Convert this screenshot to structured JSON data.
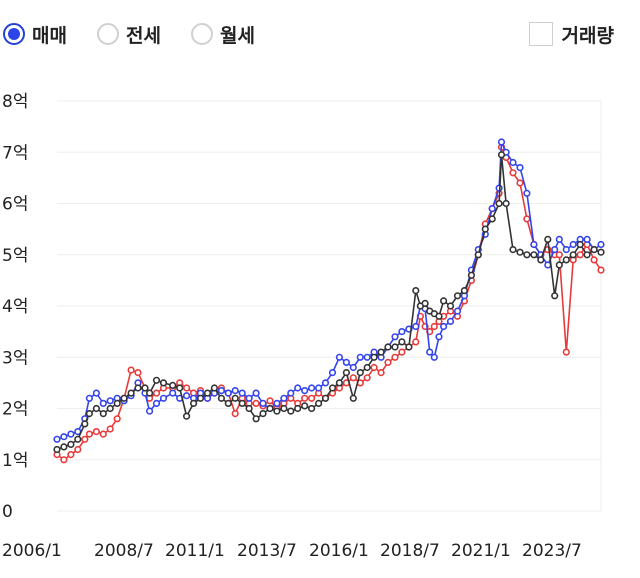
{
  "controls": {
    "radios": [
      {
        "label": "매매",
        "selected": true
      },
      {
        "label": "전세",
        "selected": false
      },
      {
        "label": "월세",
        "selected": false
      }
    ],
    "checkbox": {
      "label": "거래량",
      "checked": false
    }
  },
  "colors": {
    "sale": "#3344ee",
    "jeonse": "#e83a3a",
    "wolse": "#333333",
    "grid": "#eeeeee"
  },
  "chart_data": {
    "type": "line",
    "title": "",
    "xlabel": "",
    "ylabel": "",
    "ylim": [
      0,
      8
    ],
    "xlim": [
      "2006-01",
      "2025-08"
    ],
    "y_ticks": [
      "0",
      "1억",
      "2억",
      "3억",
      "4억",
      "5억",
      "6억",
      "7억",
      "8억"
    ],
    "x_ticks": [
      "2006/1",
      "2008/7",
      "2011/1",
      "2013/7",
      "2016/1",
      "2018/7",
      "2021/1",
      "2023/7"
    ],
    "grid": true,
    "legend": "none",
    "series": [
      {
        "color": "#3344ee",
        "points": [
          [
            "2006-01",
            1.4
          ],
          [
            "2006-04",
            1.45
          ],
          [
            "2006-07",
            1.5
          ],
          [
            "2006-10",
            1.55
          ],
          [
            "2007-01",
            1.8
          ],
          [
            "2007-03",
            2.2
          ],
          [
            "2007-06",
            2.3
          ],
          [
            "2007-09",
            2.1
          ],
          [
            "2007-12",
            2.15
          ],
          [
            "2008-03",
            2.2
          ],
          [
            "2008-06",
            2.15
          ],
          [
            "2008-09",
            2.25
          ],
          [
            "2008-12",
            2.5
          ],
          [
            "2009-03",
            2.3
          ],
          [
            "2009-05",
            1.95
          ],
          [
            "2009-08",
            2.1
          ],
          [
            "2009-11",
            2.2
          ],
          [
            "2010-03",
            2.3
          ],
          [
            "2010-06",
            2.2
          ],
          [
            "2010-09",
            2.25
          ],
          [
            "2010-12",
            2.2
          ],
          [
            "2011-03",
            2.3
          ],
          [
            "2011-06",
            2.2
          ],
          [
            "2011-09",
            2.3
          ],
          [
            "2011-12",
            2.35
          ],
          [
            "2012-03",
            2.3
          ],
          [
            "2012-06",
            2.35
          ],
          [
            "2012-09",
            2.3
          ],
          [
            "2012-12",
            2.2
          ],
          [
            "2013-03",
            2.3
          ],
          [
            "2013-06",
            2.1
          ],
          [
            "2013-09",
            2.0
          ],
          [
            "2013-12",
            2.1
          ],
          [
            "2014-03",
            2.2
          ],
          [
            "2014-06",
            2.3
          ],
          [
            "2014-09",
            2.4
          ],
          [
            "2014-12",
            2.35
          ],
          [
            "2015-03",
            2.4
          ],
          [
            "2015-06",
            2.4
          ],
          [
            "2015-09",
            2.5
          ],
          [
            "2015-12",
            2.7
          ],
          [
            "2016-03",
            3.0
          ],
          [
            "2016-06",
            2.9
          ],
          [
            "2016-09",
            2.8
          ],
          [
            "2016-12",
            3.0
          ],
          [
            "2017-03",
            3.0
          ],
          [
            "2017-06",
            3.1
          ],
          [
            "2017-09",
            3.0
          ],
          [
            "2017-12",
            3.2
          ],
          [
            "2018-03",
            3.4
          ],
          [
            "2018-06",
            3.5
          ],
          [
            "2018-09",
            3.55
          ],
          [
            "2018-12",
            3.6
          ],
          [
            "2019-02",
            4.0
          ],
          [
            "2019-04",
            3.95
          ],
          [
            "2019-06",
            3.1
          ],
          [
            "2019-08",
            3.0
          ],
          [
            "2019-10",
            3.4
          ],
          [
            "2019-12",
            3.6
          ],
          [
            "2020-03",
            3.7
          ],
          [
            "2020-06",
            3.9
          ],
          [
            "2020-09",
            4.2
          ],
          [
            "2020-12",
            4.7
          ],
          [
            "2021-03",
            5.1
          ],
          [
            "2021-06",
            5.4
          ],
          [
            "2021-09",
            5.9
          ],
          [
            "2021-12",
            6.3
          ],
          [
            "2022-01",
            7.2
          ],
          [
            "2022-03",
            7.0
          ],
          [
            "2022-06",
            6.8
          ],
          [
            "2022-09",
            6.7
          ],
          [
            "2022-12",
            6.2
          ],
          [
            "2023-03",
            5.2
          ],
          [
            "2023-06",
            5.0
          ],
          [
            "2023-09",
            4.8
          ],
          [
            "2023-12",
            5.1
          ],
          [
            "2024-02",
            5.3
          ],
          [
            "2024-05",
            5.1
          ],
          [
            "2024-08",
            5.2
          ],
          [
            "2024-11",
            5.3
          ],
          [
            "2025-02",
            5.3
          ],
          [
            "2025-05",
            5.1
          ],
          [
            "2025-08",
            5.2
          ]
        ]
      },
      {
        "color": "#e83a3a",
        "points": [
          [
            "2006-01",
            1.1
          ],
          [
            "2006-04",
            1.0
          ],
          [
            "2006-07",
            1.1
          ],
          [
            "2006-10",
            1.2
          ],
          [
            "2007-01",
            1.4
          ],
          [
            "2007-03",
            1.5
          ],
          [
            "2007-06",
            1.55
          ],
          [
            "2007-09",
            1.5
          ],
          [
            "2007-12",
            1.6
          ],
          [
            "2008-03",
            1.8
          ],
          [
            "2008-06",
            2.2
          ],
          [
            "2008-09",
            2.75
          ],
          [
            "2008-12",
            2.7
          ],
          [
            "2009-03",
            2.4
          ],
          [
            "2009-05",
            2.2
          ],
          [
            "2009-08",
            2.3
          ],
          [
            "2009-11",
            2.4
          ],
          [
            "2010-03",
            2.4
          ],
          [
            "2010-06",
            2.5
          ],
          [
            "2010-09",
            2.4
          ],
          [
            "2010-12",
            2.3
          ],
          [
            "2011-03",
            2.35
          ],
          [
            "2011-06",
            2.2
          ],
          [
            "2011-09",
            2.3
          ],
          [
            "2011-12",
            2.4
          ],
          [
            "2012-03",
            2.3
          ],
          [
            "2012-06",
            1.9
          ],
          [
            "2012-09",
            2.2
          ],
          [
            "2012-12",
            2.1
          ],
          [
            "2013-03",
            2.1
          ],
          [
            "2013-06",
            2.05
          ],
          [
            "2013-09",
            2.15
          ],
          [
            "2013-12",
            2.0
          ],
          [
            "2014-03",
            2.1
          ],
          [
            "2014-06",
            2.2
          ],
          [
            "2014-09",
            2.1
          ],
          [
            "2014-12",
            2.2
          ],
          [
            "2015-03",
            2.2
          ],
          [
            "2015-06",
            2.3
          ],
          [
            "2015-09",
            2.2
          ],
          [
            "2015-12",
            2.3
          ],
          [
            "2016-03",
            2.4
          ],
          [
            "2016-06",
            2.5
          ],
          [
            "2016-09",
            2.6
          ],
          [
            "2016-12",
            2.5
          ],
          [
            "2017-03",
            2.6
          ],
          [
            "2017-06",
            2.8
          ],
          [
            "2017-09",
            2.7
          ],
          [
            "2017-12",
            2.9
          ],
          [
            "2018-03",
            3.0
          ],
          [
            "2018-06",
            3.1
          ],
          [
            "2018-09",
            3.2
          ],
          [
            "2018-12",
            3.3
          ],
          [
            "2019-02",
            3.8
          ],
          [
            "2019-04",
            3.6
          ],
          [
            "2019-06",
            3.5
          ],
          [
            "2019-08",
            3.6
          ],
          [
            "2019-10",
            3.7
          ],
          [
            "2019-12",
            3.8
          ],
          [
            "2020-03",
            3.9
          ],
          [
            "2020-06",
            3.8
          ],
          [
            "2020-09",
            4.1
          ],
          [
            "2020-12",
            4.5
          ],
          [
            "2021-03",
            5.0
          ],
          [
            "2021-06",
            5.6
          ],
          [
            "2021-09",
            5.9
          ],
          [
            "2021-12",
            6.2
          ],
          [
            "2022-01",
            7.1
          ],
          [
            "2022-03",
            6.9
          ],
          [
            "2022-06",
            6.6
          ],
          [
            "2022-09",
            6.4
          ],
          [
            "2022-12",
            5.7
          ],
          [
            "2023-03",
            5.2
          ],
          [
            "2023-06",
            5.0
          ],
          [
            "2023-09",
            5.1
          ],
          [
            "2023-12",
            5.0
          ],
          [
            "2024-02",
            5.0
          ],
          [
            "2024-05",
            3.1
          ],
          [
            "2024-08",
            4.9
          ],
          [
            "2024-11",
            5.0
          ],
          [
            "2025-02",
            5.2
          ],
          [
            "2025-05",
            4.9
          ],
          [
            "2025-08",
            4.7
          ]
        ]
      },
      {
        "color": "#333333",
        "points": [
          [
            "2006-01",
            1.2
          ],
          [
            "2006-04",
            1.25
          ],
          [
            "2006-07",
            1.3
          ],
          [
            "2006-10",
            1.4
          ],
          [
            "2007-01",
            1.7
          ],
          [
            "2007-03",
            1.9
          ],
          [
            "2007-06",
            2.0
          ],
          [
            "2007-09",
            1.9
          ],
          [
            "2007-12",
            2.0
          ],
          [
            "2008-03",
            2.1
          ],
          [
            "2008-06",
            2.2
          ],
          [
            "2008-09",
            2.3
          ],
          [
            "2008-12",
            2.4
          ],
          [
            "2009-03",
            2.4
          ],
          [
            "2009-05",
            2.3
          ],
          [
            "2009-08",
            2.55
          ],
          [
            "2009-11",
            2.5
          ],
          [
            "2010-03",
            2.45
          ],
          [
            "2010-06",
            2.4
          ],
          [
            "2010-09",
            1.85
          ],
          [
            "2010-12",
            2.1
          ],
          [
            "2011-03",
            2.2
          ],
          [
            "2011-06",
            2.3
          ],
          [
            "2011-09",
            2.4
          ],
          [
            "2011-12",
            2.2
          ],
          [
            "2012-03",
            2.1
          ],
          [
            "2012-06",
            2.2
          ],
          [
            "2012-09",
            2.1
          ],
          [
            "2012-12",
            2.0
          ],
          [
            "2013-03",
            1.8
          ],
          [
            "2013-06",
            1.9
          ],
          [
            "2013-09",
            2.0
          ],
          [
            "2013-12",
            1.95
          ],
          [
            "2014-03",
            2.0
          ],
          [
            "2014-06",
            1.95
          ],
          [
            "2014-09",
            2.0
          ],
          [
            "2014-12",
            2.05
          ],
          [
            "2015-03",
            2.0
          ],
          [
            "2015-06",
            2.1
          ],
          [
            "2015-09",
            2.2
          ],
          [
            "2015-12",
            2.4
          ],
          [
            "2016-03",
            2.5
          ],
          [
            "2016-06",
            2.7
          ],
          [
            "2016-09",
            2.2
          ],
          [
            "2016-12",
            2.7
          ],
          [
            "2017-03",
            2.8
          ],
          [
            "2017-06",
            3.0
          ],
          [
            "2017-09",
            3.1
          ],
          [
            "2017-12",
            3.2
          ],
          [
            "2018-03",
            3.2
          ],
          [
            "2018-06",
            3.3
          ],
          [
            "2018-09",
            3.2
          ],
          [
            "2018-12",
            4.3
          ],
          [
            "2019-02",
            4.0
          ],
          [
            "2019-04",
            4.05
          ],
          [
            "2019-06",
            3.9
          ],
          [
            "2019-08",
            3.85
          ],
          [
            "2019-10",
            3.8
          ],
          [
            "2019-12",
            4.1
          ],
          [
            "2020-03",
            4.0
          ],
          [
            "2020-06",
            4.2
          ],
          [
            "2020-09",
            4.3
          ],
          [
            "2020-12",
            4.6
          ],
          [
            "2021-03",
            5.0
          ],
          [
            "2021-06",
            5.5
          ],
          [
            "2021-09",
            5.7
          ],
          [
            "2021-12",
            6.0
          ],
          [
            "2022-01",
            6.95
          ],
          [
            "2022-03",
            6.0
          ],
          [
            "2022-06",
            5.1
          ],
          [
            "2022-09",
            5.05
          ],
          [
            "2022-12",
            5.0
          ],
          [
            "2023-03",
            5.0
          ],
          [
            "2023-06",
            4.9
          ],
          [
            "2023-09",
            5.3
          ],
          [
            "2023-12",
            4.2
          ],
          [
            "2024-02",
            4.8
          ],
          [
            "2024-05",
            4.9
          ],
          [
            "2024-08",
            5.0
          ],
          [
            "2024-11",
            5.2
          ],
          [
            "2025-02",
            5.0
          ],
          [
            "2025-05",
            5.1
          ],
          [
            "2025-08",
            5.05
          ]
        ]
      }
    ]
  }
}
